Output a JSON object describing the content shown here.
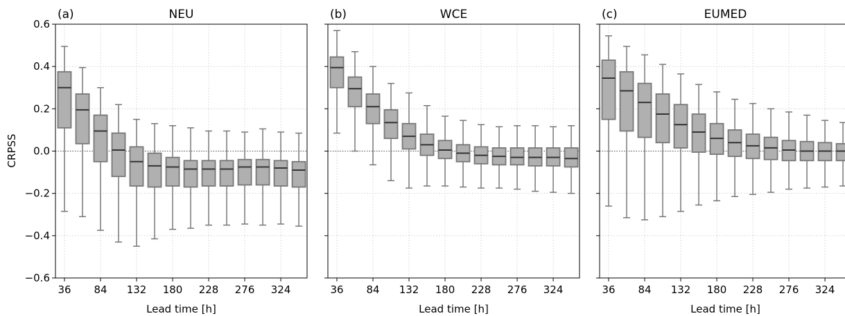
{
  "figure": {
    "ylabel": "CRPSS",
    "xlabel": "Lead time [h]",
    "zero_line_color": "#555555",
    "box_fill": "#b0b0b0",
    "box_edge": "#777777",
    "median_color": "#333333",
    "grid_color": "#c8c8c8"
  },
  "chart_data": [
    {
      "type": "boxplot",
      "panel_label": "(a)",
      "title": "NEU",
      "xlabel": "Lead time [h]",
      "ylabel": "CRPSS",
      "ylim": [
        -0.6,
        0.6
      ],
      "yticks": [
        -0.6,
        -0.4,
        -0.2,
        0.0,
        0.2,
        0.4,
        0.6
      ],
      "ytick_labels": [
        "−0.6",
        "−0.4",
        "−0.2",
        "0.0",
        "0.2",
        "0.4",
        "0.6"
      ],
      "x": [
        36,
        60,
        84,
        108,
        132,
        156,
        180,
        204,
        228,
        252,
        276,
        300,
        324,
        348
      ],
      "xticks": [
        36,
        84,
        132,
        180,
        228,
        276,
        324
      ],
      "grid": true,
      "boxes": [
        {
          "whislo": -0.285,
          "q1": 0.11,
          "med": 0.3,
          "q3": 0.375,
          "whishi": 0.495
        },
        {
          "whislo": -0.31,
          "q1": 0.035,
          "med": 0.195,
          "q3": 0.27,
          "whishi": 0.395
        },
        {
          "whislo": -0.375,
          "q1": -0.05,
          "med": 0.095,
          "q3": 0.17,
          "whishi": 0.3
        },
        {
          "whislo": -0.43,
          "q1": -0.12,
          "med": 0.005,
          "q3": 0.085,
          "whishi": 0.22
        },
        {
          "whislo": -0.45,
          "q1": -0.165,
          "med": -0.05,
          "q3": 0.02,
          "whishi": 0.15
        },
        {
          "whislo": -0.415,
          "q1": -0.17,
          "med": -0.07,
          "q3": -0.01,
          "whishi": 0.13
        },
        {
          "whislo": -0.37,
          "q1": -0.165,
          "med": -0.075,
          "q3": -0.03,
          "whishi": 0.12
        },
        {
          "whislo": -0.365,
          "q1": -0.17,
          "med": -0.085,
          "q3": -0.045,
          "whishi": 0.11
        },
        {
          "whislo": -0.35,
          "q1": -0.165,
          "med": -0.085,
          "q3": -0.045,
          "whishi": 0.095
        },
        {
          "whislo": -0.35,
          "q1": -0.165,
          "med": -0.085,
          "q3": -0.045,
          "whishi": 0.095
        },
        {
          "whislo": -0.345,
          "q1": -0.16,
          "med": -0.075,
          "q3": -0.04,
          "whishi": 0.09
        },
        {
          "whislo": -0.35,
          "q1": -0.16,
          "med": -0.075,
          "q3": -0.04,
          "whishi": 0.105
        },
        {
          "whislo": -0.345,
          "q1": -0.165,
          "med": -0.08,
          "q3": -0.045,
          "whishi": 0.09
        },
        {
          "whislo": -0.355,
          "q1": -0.17,
          "med": -0.09,
          "q3": -0.05,
          "whishi": 0.085
        }
      ]
    },
    {
      "type": "boxplot",
      "panel_label": "(b)",
      "title": "WCE",
      "xlabel": "Lead time [h]",
      "ylabel": "",
      "ylim": [
        -0.6,
        0.6
      ],
      "x": [
        36,
        60,
        84,
        108,
        132,
        156,
        180,
        204,
        228,
        252,
        276,
        300,
        324,
        348
      ],
      "xticks": [
        36,
        84,
        132,
        180,
        228,
        276,
        324
      ],
      "grid": true,
      "boxes": [
        {
          "whislo": 0.085,
          "q1": 0.3,
          "med": 0.395,
          "q3": 0.445,
          "whishi": 0.57
        },
        {
          "whislo": 0.0,
          "q1": 0.21,
          "med": 0.295,
          "q3": 0.35,
          "whishi": 0.47
        },
        {
          "whislo": -0.065,
          "q1": 0.13,
          "med": 0.21,
          "q3": 0.27,
          "whishi": 0.4
        },
        {
          "whislo": -0.14,
          "q1": 0.06,
          "med": 0.135,
          "q3": 0.195,
          "whishi": 0.32
        },
        {
          "whislo": -0.175,
          "q1": 0.01,
          "med": 0.07,
          "q3": 0.13,
          "whishi": 0.275
        },
        {
          "whislo": -0.165,
          "q1": -0.02,
          "med": 0.03,
          "q3": 0.08,
          "whishi": 0.215
        },
        {
          "whislo": -0.165,
          "q1": -0.035,
          "med": 0.005,
          "q3": 0.05,
          "whishi": 0.165
        },
        {
          "whislo": -0.17,
          "q1": -0.05,
          "med": -0.01,
          "q3": 0.03,
          "whishi": 0.145
        },
        {
          "whislo": -0.175,
          "q1": -0.06,
          "med": -0.02,
          "q3": 0.02,
          "whishi": 0.125
        },
        {
          "whislo": -0.175,
          "q1": -0.065,
          "med": -0.025,
          "q3": 0.015,
          "whishi": 0.115
        },
        {
          "whislo": -0.18,
          "q1": -0.065,
          "med": -0.03,
          "q3": 0.015,
          "whishi": 0.12
        },
        {
          "whislo": -0.19,
          "q1": -0.07,
          "med": -0.03,
          "q3": 0.015,
          "whishi": 0.12
        },
        {
          "whislo": -0.195,
          "q1": -0.07,
          "med": -0.03,
          "q3": 0.015,
          "whishi": 0.115
        },
        {
          "whislo": -0.2,
          "q1": -0.075,
          "med": -0.035,
          "q3": 0.015,
          "whishi": 0.12
        }
      ]
    },
    {
      "type": "boxplot",
      "panel_label": "(c)",
      "title": "EUMED",
      "xlabel": "Lead time [h]",
      "ylabel": "",
      "ylim": [
        -0.6,
        0.6
      ],
      "x": [
        36,
        60,
        84,
        108,
        132,
        156,
        180,
        204,
        228,
        252,
        276,
        300,
        324,
        348
      ],
      "xticks": [
        36,
        84,
        132,
        180,
        228,
        276,
        324
      ],
      "grid": true,
      "boxes": [
        {
          "whislo": -0.26,
          "q1": 0.15,
          "med": 0.345,
          "q3": 0.43,
          "whishi": 0.545
        },
        {
          "whislo": -0.315,
          "q1": 0.095,
          "med": 0.285,
          "q3": 0.375,
          "whishi": 0.495
        },
        {
          "whislo": -0.325,
          "q1": 0.065,
          "med": 0.23,
          "q3": 0.32,
          "whishi": 0.455
        },
        {
          "whislo": -0.31,
          "q1": 0.04,
          "med": 0.175,
          "q3": 0.27,
          "whishi": 0.41
        },
        {
          "whislo": -0.285,
          "q1": 0.015,
          "med": 0.125,
          "q3": 0.22,
          "whishi": 0.365
        },
        {
          "whislo": -0.255,
          "q1": -0.005,
          "med": 0.09,
          "q3": 0.175,
          "whishi": 0.315
        },
        {
          "whislo": -0.235,
          "q1": -0.015,
          "med": 0.06,
          "q3": 0.13,
          "whishi": 0.28
        },
        {
          "whislo": -0.215,
          "q1": -0.025,
          "med": 0.04,
          "q3": 0.1,
          "whishi": 0.245
        },
        {
          "whislo": -0.205,
          "q1": -0.035,
          "med": 0.025,
          "q3": 0.08,
          "whishi": 0.225
        },
        {
          "whislo": -0.195,
          "q1": -0.04,
          "med": 0.015,
          "q3": 0.065,
          "whishi": 0.2
        },
        {
          "whislo": -0.18,
          "q1": -0.045,
          "med": 0.005,
          "q3": 0.05,
          "whishi": 0.185
        },
        {
          "whislo": -0.175,
          "q1": -0.045,
          "med": 0.0,
          "q3": 0.045,
          "whishi": 0.17
        },
        {
          "whislo": -0.17,
          "q1": -0.045,
          "med": 0.0,
          "q3": 0.04,
          "whishi": 0.145
        },
        {
          "whislo": -0.165,
          "q1": -0.045,
          "med": 0.0,
          "q3": 0.035,
          "whishi": 0.135
        }
      ]
    }
  ]
}
